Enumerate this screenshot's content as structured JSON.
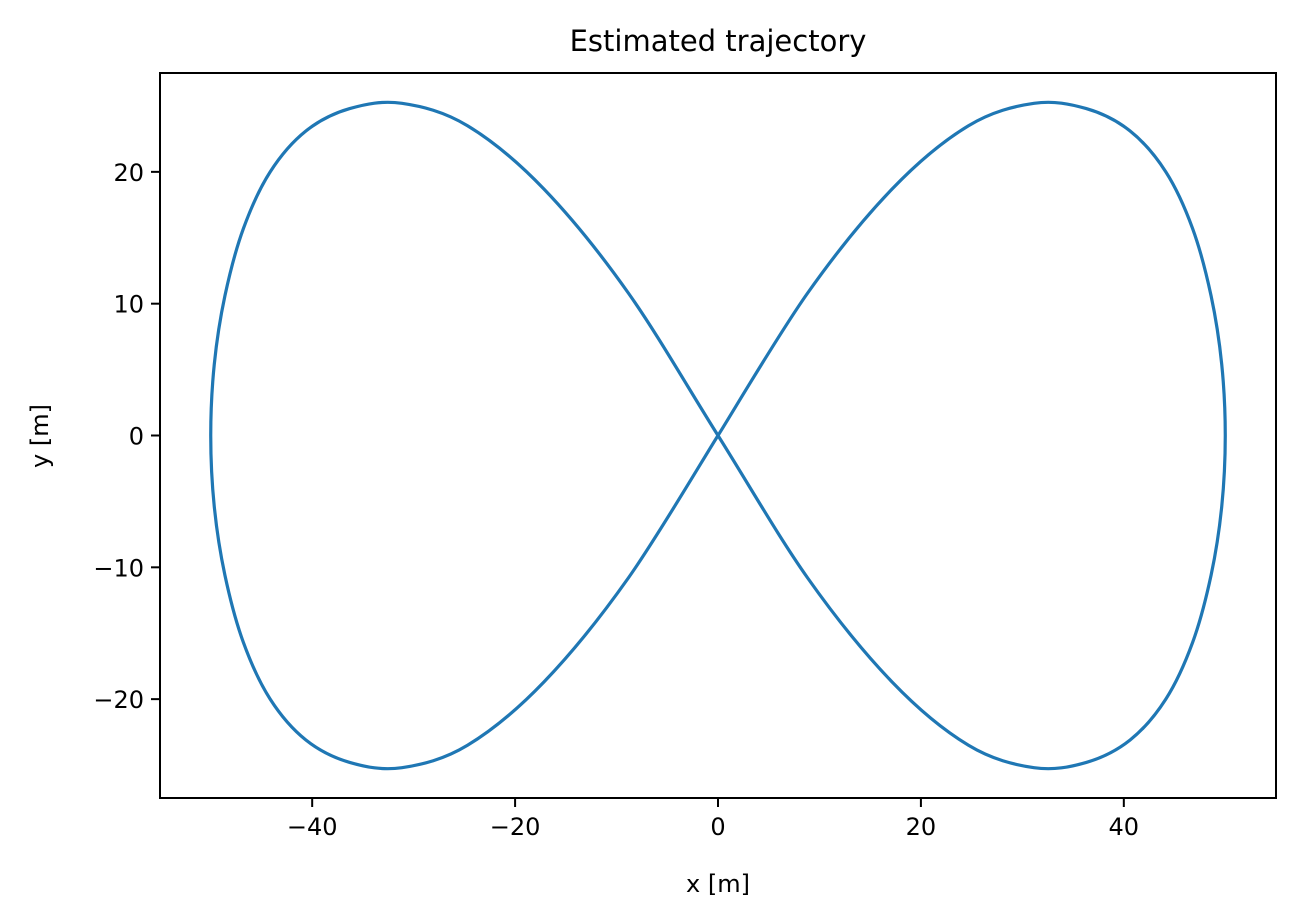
{
  "chart_data": {
    "type": "line",
    "title": "Estimated trajectory",
    "xlabel": "x [m]",
    "ylabel": "y [m]",
    "xlim": [
      -55,
      55
    ],
    "ylim": [
      -27.5,
      27.5
    ],
    "x_ticks": [
      -40,
      -20,
      0,
      20,
      40
    ],
    "y_ticks": [
      -20,
      -10,
      0,
      10,
      20
    ],
    "x_tick_labels": [
      "−40",
      "−20",
      "0",
      "20",
      "40"
    ],
    "y_tick_labels": [
      "−20",
      "−10",
      "0",
      "10",
      "20"
    ],
    "grid": false,
    "legend": "none",
    "series": [
      {
        "color": "#1f77b4",
        "x": [
          0,
          8.83,
          17.16,
          24.69,
          31.15,
          36.3,
          40.62,
          44.14,
          46.78,
          48.6,
          49.65,
          50,
          49.65,
          48.6,
          46.78,
          44.14,
          40.62,
          36.3,
          31.15,
          24.69,
          17.16,
          8.83,
          0,
          -8.83,
          -17.16,
          -24.69,
          -31.15,
          -36.3,
          -40.62,
          -44.14,
          -46.78,
          -48.6,
          -49.65,
          -50,
          -49.65,
          -48.6,
          -46.78,
          -44.14,
          -40.62,
          -36.3,
          -31.15,
          -24.69,
          -17.16,
          -8.83,
          0
        ],
        "y": [
          0,
          10.8,
          18.7,
          23.5,
          25.2,
          24.8,
          23.1,
          20.0,
          15.7,
          10.6,
          5.4,
          0,
          -5.4,
          -10.6,
          -15.7,
          -20.0,
          -23.1,
          -24.8,
          -25.2,
          -23.5,
          -18.7,
          -10.8,
          0,
          10.8,
          18.7,
          23.5,
          25.2,
          24.8,
          23.1,
          20.0,
          15.7,
          10.6,
          5.4,
          0,
          -5.4,
          -10.6,
          -15.7,
          -20.0,
          -23.1,
          -24.8,
          -25.2,
          -23.5,
          -18.7,
          -10.8,
          0
        ]
      }
    ]
  }
}
